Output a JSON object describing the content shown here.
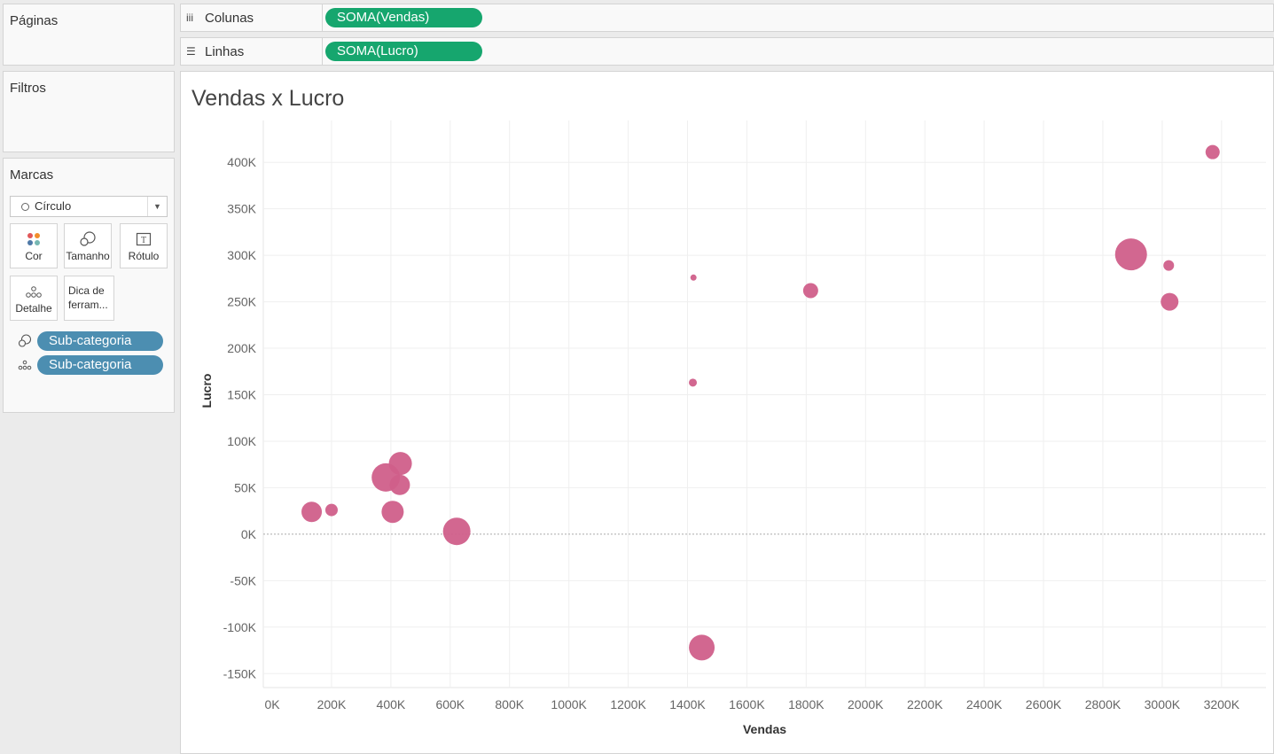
{
  "sidebar": {
    "paginas": "Páginas",
    "filtros": "Filtros",
    "marcas": {
      "title": "Marcas",
      "mark_type": "Círculo",
      "buttons": [
        {
          "label": "Cor",
          "icon": "color-dots-icon"
        },
        {
          "label": "Tamanho",
          "icon": "size-icon"
        },
        {
          "label": "Rótulo",
          "icon": "label-icon"
        },
        {
          "label": "Detalhe",
          "icon": "detail-icon"
        },
        {
          "label": "Dica de ferram...",
          "icon": "tooltip-icon"
        }
      ],
      "fields": [
        {
          "label": "Sub-categoria",
          "icon": "size-icon"
        },
        {
          "label": "Sub-categoria",
          "icon": "detail-icon"
        }
      ]
    }
  },
  "shelves": {
    "columns": {
      "label": "Colunas",
      "pill": "SOMA(Vendas)"
    },
    "rows": {
      "label": "Linhas",
      "pill": "SOMA(Lucro)"
    }
  },
  "colors": {
    "mark": "#d05f8a",
    "green_pill": "#16a66e",
    "blue_pill": "#4c8eb1"
  },
  "chart_data": {
    "type": "scatter",
    "title": "Vendas x Lucro",
    "xlabel": "Vendas",
    "ylabel": "Lucro",
    "xlim": [
      -30000,
      3350000
    ],
    "ylim": [
      -165000,
      445000
    ],
    "x_ticks": [
      "0K",
      "200K",
      "400K",
      "600K",
      "800K",
      "1000K",
      "1200K",
      "1400K",
      "1600K",
      "1800K",
      "2000K",
      "2200K",
      "2400K",
      "2600K",
      "2800K",
      "3000K",
      "3200K"
    ],
    "y_ticks": [
      "-150K",
      "-100K",
      "-50K",
      "0K",
      "50K",
      "100K",
      "150K",
      "200K",
      "250K",
      "300K",
      "350K",
      "400K"
    ],
    "grid": true,
    "points": [
      {
        "x": 3170000,
        "y": 411000,
        "size": 8
      },
      {
        "x": 2895000,
        "y": 301000,
        "size": 18
      },
      {
        "x": 3022000,
        "y": 289000,
        "size": 6
      },
      {
        "x": 3025000,
        "y": 250000,
        "size": 10
      },
      {
        "x": 1420000,
        "y": 276000,
        "size": 3.5
      },
      {
        "x": 1815000,
        "y": 262000,
        "size": 8.5
      },
      {
        "x": 1418000,
        "y": 163000,
        "size": 4.5
      },
      {
        "x": 432000,
        "y": 76000,
        "size": 13
      },
      {
        "x": 383000,
        "y": 61000,
        "size": 16
      },
      {
        "x": 430000,
        "y": 53000,
        "size": 11.5
      },
      {
        "x": 200000,
        "y": 26000,
        "size": 7
      },
      {
        "x": 133000,
        "y": 24000,
        "size": 11.5
      },
      {
        "x": 406000,
        "y": 24000,
        "size": 12.5
      },
      {
        "x": 622000,
        "y": 3000,
        "size": 15.5
      },
      {
        "x": 1448000,
        "y": -122000,
        "size": 14.5
      }
    ]
  }
}
